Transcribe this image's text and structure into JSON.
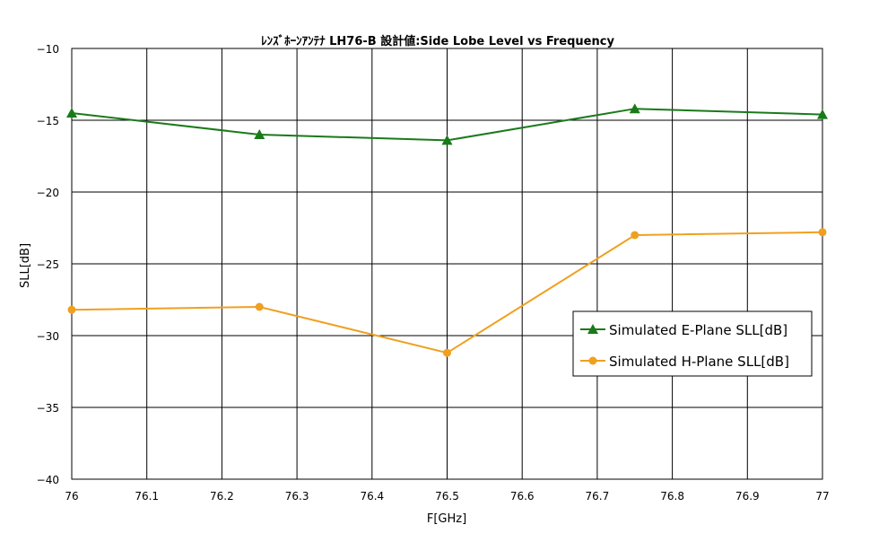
{
  "chart_data": {
    "type": "line",
    "title": "ﾚﾝｽﾞﾎｰﾝｱﾝﾃﾅ LH76-B 設計値:Side Lobe Level vs Frequency",
    "xlabel": "F[GHz]",
    "ylabel": "SLL[dB]",
    "xlim": [
      76,
      77
    ],
    "ylim": [
      -40,
      -10
    ],
    "x_ticks": [
      "76",
      "76.1",
      "76.2",
      "76.3",
      "76.4",
      "76.5",
      "76.6",
      "76.7",
      "76.8",
      "76.9",
      "77"
    ],
    "y_ticks": [
      "-10",
      "-15",
      "-20",
      "-25",
      "-30",
      "-35",
      "-40"
    ],
    "grid": true,
    "legend_position": "right",
    "series": [
      {
        "name": "Simulated E-Plane SLL[dB]",
        "color": "#1a7a1a",
        "marker": "triangle",
        "x": [
          76,
          76.25,
          76.5,
          76.75,
          77
        ],
        "y": [
          -14.5,
          -16.0,
          -16.4,
          -14.2,
          -14.6
        ]
      },
      {
        "name": "Simulated H-Plane SLL[dB]",
        "color": "#f0a020",
        "marker": "circle",
        "x": [
          76,
          76.25,
          76.5,
          76.75,
          77
        ],
        "y": [
          -28.2,
          -28.0,
          -31.2,
          -23.0,
          -22.8
        ]
      }
    ]
  }
}
